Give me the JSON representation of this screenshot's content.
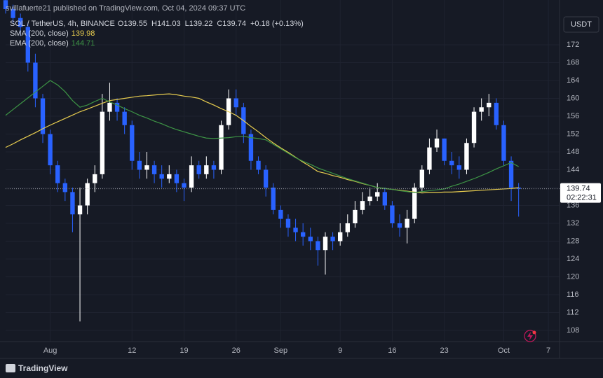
{
  "header": {
    "publisher": "svillafuerte21 published on TradingView.com, Oct 04, 2024 09:37 UTC"
  },
  "chart_data": {
    "type": "candlestick",
    "symbol": "SOL / TetherUS, 4h, BINANCE",
    "ohlc_labels": [
      "O139.55",
      "H141.03",
      "L139.22",
      "C139.74"
    ],
    "change": "+0.18 (+0.13%)",
    "currency": "USDT",
    "open": [
      182,
      180,
      178,
      176,
      168,
      160,
      152,
      145,
      141,
      139,
      134,
      136,
      141,
      143,
      157,
      159,
      157,
      154,
      146,
      144,
      145,
      143,
      142,
      143,
      141,
      140,
      145,
      143,
      145,
      144,
      154,
      160,
      158,
      152,
      146,
      144,
      140,
      135,
      133,
      131,
      130,
      129,
      128,
      126,
      129,
      128,
      130,
      132,
      135,
      137,
      138,
      139,
      136,
      132,
      131,
      133,
      140,
      144,
      149,
      151,
      146,
      145,
      144,
      150,
      157,
      158,
      159,
      154,
      146,
      140
    ],
    "high": [
      183,
      181,
      179,
      177,
      170,
      161,
      153,
      146,
      142,
      140,
      140,
      142,
      145,
      161,
      163.5,
      160,
      158,
      155,
      148,
      148,
      146,
      145,
      145,
      144,
      142,
      147,
      146,
      147,
      146,
      155,
      162,
      162,
      159,
      153,
      147,
      145,
      141,
      136,
      134,
      133,
      132,
      131,
      129,
      130,
      130,
      132,
      134,
      137,
      139,
      140,
      141,
      140,
      137,
      134,
      135,
      141,
      145,
      151,
      153,
      151,
      148,
      147,
      151,
      158,
      160,
      161,
      160,
      155,
      147,
      141.03
    ],
    "low": [
      179,
      177,
      174,
      166,
      158,
      150,
      143,
      139,
      137,
      130,
      110,
      134,
      139,
      142,
      155,
      155,
      152,
      144,
      142,
      142,
      141,
      140,
      141,
      139,
      137,
      139,
      142,
      142,
      142,
      143,
      153,
      156,
      150,
      144,
      143,
      138,
      134,
      131,
      129,
      128,
      127,
      126,
      122.5,
      120.5,
      126,
      127,
      129,
      131,
      134,
      136,
      137,
      135,
      131,
      129,
      127.5,
      132,
      139,
      143,
      148,
      145,
      143,
      142,
      143,
      149,
      155,
      156,
      153,
      145,
      137,
      133.5
    ],
    "close": [
      180,
      178,
      176,
      168,
      160,
      152,
      145,
      141,
      139,
      134,
      136,
      141,
      143,
      157,
      159,
      157,
      154,
      146,
      144,
      145,
      143,
      142,
      143,
      141,
      140,
      145,
      143,
      145,
      144,
      154,
      160,
      158,
      152,
      146,
      144,
      140,
      135,
      133,
      131,
      130,
      129,
      128,
      126,
      129,
      128,
      130,
      132,
      135,
      137,
      138,
      139,
      136,
      132,
      131,
      133,
      140,
      144,
      149,
      151,
      146,
      145,
      144,
      150,
      157,
      158,
      159,
      154,
      146,
      140,
      139.74
    ],
    "up_color": "#ffffff",
    "down_color": "#2962ff",
    "series": [
      {
        "name": "SMA (200, close)",
        "value_label": "139.98",
        "color": "#e8cd4f",
        "values": [
          149,
          149.8,
          150.7,
          151.5,
          152.3,
          153.2,
          154,
          154.75,
          155.5,
          156.25,
          157,
          157.6,
          158.25,
          158.9,
          159.5,
          159.75,
          160,
          160.25,
          160.5,
          160.6,
          160.75,
          160.9,
          161,
          160.8,
          160.5,
          160.3,
          160,
          159.2,
          158.5,
          157.7,
          157,
          156.2,
          155,
          153.7,
          152.5,
          151.2,
          150,
          148.9,
          147.9,
          146.8,
          145.7,
          144.7,
          143.6,
          143.2,
          142.7,
          142.3,
          141.8,
          141.4,
          140.9,
          140.5,
          140,
          139.8,
          139.6,
          139.4,
          139.2,
          139,
          138.8,
          138.9,
          138.9,
          139,
          139,
          139.1,
          139.2,
          139.3,
          139.4,
          139.5,
          139.6,
          139.7,
          139.8,
          139.98
        ]
      },
      {
        "name": "EMA (200, close)",
        "value_label": "144.71",
        "color": "#3d9445",
        "values": [
          156.2,
          157.5,
          158.8,
          160.1,
          161.4,
          162.7,
          164,
          163,
          161.5,
          159.5,
          158,
          158.5,
          159.3,
          160,
          159.2,
          158.5,
          157.7,
          157,
          156.2,
          155.6,
          154.9,
          154.3,
          153.6,
          153,
          152.5,
          152,
          151.5,
          151.1,
          151,
          151.1,
          151.2,
          151.4,
          151.5,
          151.2,
          151,
          150.7,
          149.7,
          148.7,
          147.7,
          146.7,
          145.9,
          145.2,
          144.4,
          143.8,
          143.2,
          142.6,
          142,
          141.5,
          141,
          140.5,
          140,
          139.8,
          139.6,
          139.3,
          139.1,
          138.9,
          139.1,
          139.3,
          139.5,
          139.7,
          140.3,
          140.8,
          141.4,
          142,
          142.7,
          143.4,
          144.2,
          144.9,
          145.6,
          144.71
        ]
      }
    ],
    "last_price": 139.74,
    "countdown": "02:22:31",
    "ylim": [
      105.49,
      182.04
    ],
    "yticks": [
      108,
      112,
      116,
      120,
      124,
      128,
      132,
      136,
      140,
      144,
      148,
      152,
      156,
      160,
      164,
      168,
      172
    ],
    "xlim": [
      0,
      74.5
    ],
    "xticks": [
      {
        "value": 6,
        "label": "Aug"
      },
      {
        "value": 17,
        "label": "12"
      },
      {
        "value": 24,
        "label": "19"
      },
      {
        "value": 31,
        "label": "26"
      },
      {
        "value": 37,
        "label": "Sep"
      },
      {
        "value": 45,
        "label": "9"
      },
      {
        "value": 52,
        "label": "16"
      },
      {
        "value": 59,
        "label": "23"
      },
      {
        "value": 67,
        "label": "Oct"
      },
      {
        "value": 73,
        "label": "7"
      }
    ],
    "grid": true
  },
  "footer": {
    "brand": "TradingView"
  }
}
